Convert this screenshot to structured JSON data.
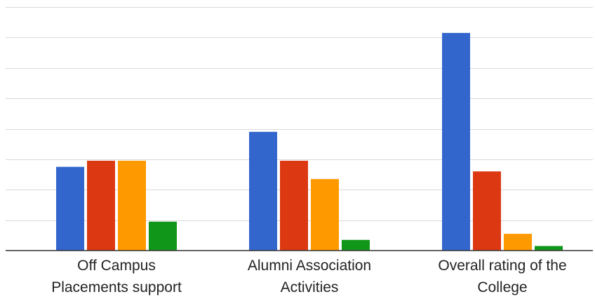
{
  "chart_data": {
    "type": "bar",
    "categories": [
      [
        "Off Campus",
        "Placements support"
      ],
      [
        "Alumni Association",
        "Activities"
      ],
      [
        "Overall rating of the",
        "College"
      ]
    ],
    "series": [
      {
        "values": [
          5.5,
          7.8,
          14.3
        ],
        "color": "#3366cc"
      },
      {
        "values": [
          5.9,
          5.9,
          5.2
        ],
        "color": "#dc3912"
      },
      {
        "values": [
          5.9,
          4.7,
          1.1
        ],
        "color": "#ff9900"
      },
      {
        "values": [
          1.9,
          0.7,
          0.3
        ],
        "color": "#109618"
      }
    ],
    "ylim": [
      0,
      16
    ],
    "grid": true,
    "gridline_step": 2,
    "legend": "none"
  }
}
